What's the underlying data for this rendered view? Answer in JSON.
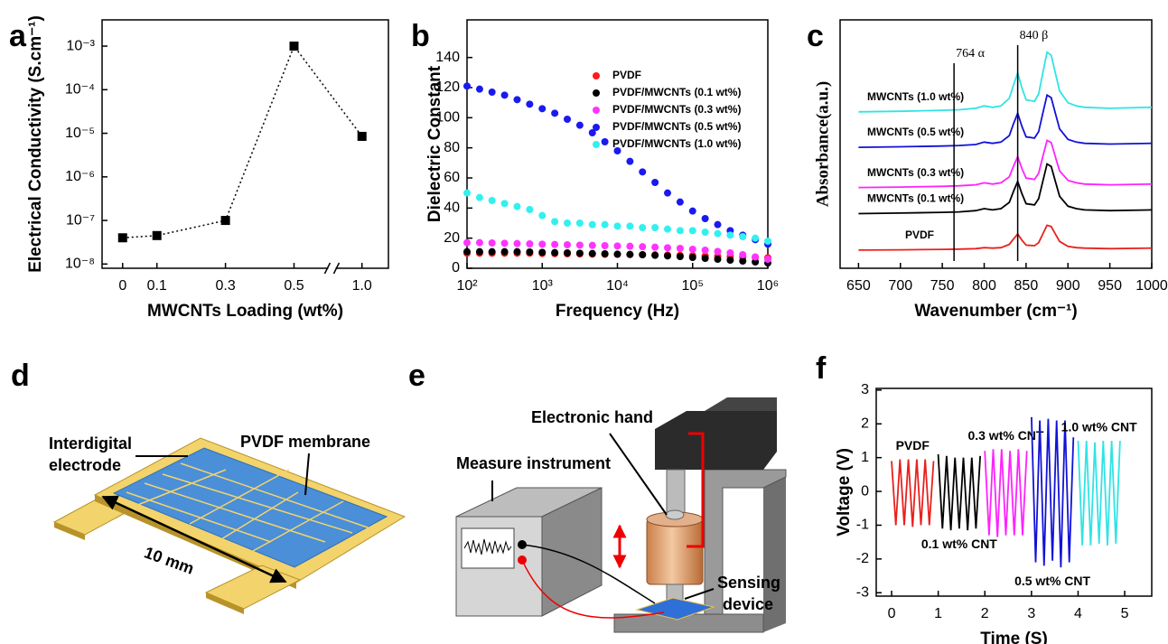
{
  "chart_data": [
    {
      "panel": "a",
      "type": "line",
      "marker": "square",
      "line_style": "dotted",
      "color": "#000000",
      "x": [
        0,
        0.1,
        0.3,
        0.5,
        1
      ],
      "values": [
        4e-08,
        4.5e-08,
        1e-07,
        0.001,
        8.5e-06
      ],
      "xlim": [
        -0.06,
        1.1
      ],
      "axis_break": [
        0.6,
        0.9
      ],
      "xticks": [
        0,
        0.1,
        0.3,
        0.5,
        {
          "value": 1,
          "label": "1.0"
        }
      ],
      "ylim": [
        8e-09,
        0.004
      ],
      "ylog": true,
      "yticks": [
        {
          "value": 1e-08,
          "label": "10⁻⁸"
        },
        {
          "value": 1e-07,
          "label": "10⁻⁷"
        },
        {
          "value": 1e-06,
          "label": "10⁻⁶"
        },
        {
          "value": 1e-05,
          "label": "10⁻⁵"
        },
        {
          "value": 0.0001,
          "label": "10⁻⁴"
        },
        {
          "value": 0.001,
          "label": "10⁻³"
        }
      ],
      "xlabel": "MWCNTs Loading  (wt%)",
      "ylabel": "Electrical Conductivity (S.cm⁻¹)"
    },
    {
      "panel": "b",
      "type": "scatter",
      "xlog": true,
      "legend": "upper right",
      "x": [
        100,
        147,
        215,
        316,
        464,
        681,
        1000,
        1468,
        2154,
        3162,
        4642,
        6813,
        10000,
        14678,
        21544,
        31623,
        46416,
        68129,
        100000,
        146780,
        215440,
        316230,
        464160,
        681290,
        1000000
      ],
      "series": [
        {
          "name": "PVDF",
          "color": "#ff1a1a",
          "values": [
            10,
            10,
            10,
            10,
            10,
            10,
            9.8,
            9.7,
            9.6,
            9.5,
            9.4,
            9.3,
            9.2,
            9.1,
            9,
            8.9,
            8.8,
            8.6,
            8.4,
            8.2,
            8,
            7.8,
            7.5,
            7.2,
            7
          ]
        },
        {
          "name": "PVDF/MWCNTs (0.1 wt%)",
          "color": "#000000",
          "values": [
            11,
            11,
            11,
            11,
            11,
            10.8,
            10.6,
            10.4,
            10.2,
            10,
            9.8,
            9.6,
            9.4,
            9.2,
            9,
            8.6,
            8.2,
            7.8,
            7.2,
            6.6,
            6,
            5.4,
            4.8,
            4.2,
            3.5
          ]
        },
        {
          "name": "PVDF/MWCNTs (0.3 wt%)",
          "color": "#ff33ff",
          "values": [
            17,
            17,
            16.8,
            16.6,
            16.4,
            16.2,
            16,
            15.8,
            15.6,
            15.4,
            15.2,
            15,
            14.8,
            14.6,
            14.3,
            14,
            13.6,
            13.2,
            12.6,
            12,
            11.2,
            10.2,
            9,
            7.5,
            6
          ]
        },
        {
          "name": "PVDF/MWCNTs (0.5 wt%)",
          "color": "#1a1aee",
          "values": [
            121,
            119,
            117,
            115,
            112,
            109,
            106,
            103,
            99,
            95,
            90,
            84,
            78,
            71,
            64,
            57,
            50,
            44,
            38,
            33,
            29,
            25,
            22,
            19,
            16
          ]
        },
        {
          "name": "PVDF/MWCNTs (1.0 wt%)",
          "color": "#33f0f0",
          "values": [
            50,
            47,
            45,
            43,
            41,
            39,
            35,
            31,
            30,
            30,
            29,
            29,
            28,
            28,
            27,
            27,
            26,
            25,
            25,
            24,
            23,
            22,
            21,
            20,
            18
          ]
        }
      ],
      "xlim": [
        100,
        1000000
      ],
      "xticks": [
        {
          "value": 100,
          "label": "10²"
        },
        {
          "value": 1000,
          "label": "10³"
        },
        {
          "value": 10000,
          "label": "10⁴"
        },
        {
          "value": 100000,
          "label": "10⁵"
        },
        {
          "value": 1000000,
          "label": "10⁶"
        }
      ],
      "ylim": [
        0,
        165
      ],
      "yticks": [
        0,
        20,
        40,
        60,
        80,
        100,
        120,
        140
      ],
      "xlabel": "Frequency (Hz)",
      "ylabel": "Dielectric Constant"
    },
    {
      "panel": "c",
      "type": "line",
      "x": [
        650,
        700,
        750,
        770,
        790,
        800,
        810,
        820,
        830,
        835,
        840,
        845,
        850,
        860,
        865,
        870,
        875,
        880,
        885,
        890,
        900,
        910,
        920,
        950,
        1000
      ],
      "series": [
        {
          "name": "PVDF",
          "color": "#e8211d",
          "values": [
            0.73,
            0.74,
            0.76,
            0.77,
            0.79,
            0.83,
            0.81,
            0.83,
            0.96,
            1.18,
            1.38,
            1.13,
            0.93,
            0.91,
            1.03,
            1.38,
            1.73,
            1.68,
            1.38,
            1.08,
            0.88,
            0.83,
            0.81,
            0.79,
            0.81
          ]
        },
        {
          "name": "MWCNTs (0.1 wt%)",
          "color": "#000000",
          "values": [
            2.2,
            2.22,
            2.25,
            2.27,
            2.32,
            2.4,
            2.35,
            2.4,
            2.65,
            3.1,
            3.5,
            3.0,
            2.6,
            2.55,
            2.8,
            3.5,
            4.2,
            4.1,
            3.5,
            2.9,
            2.5,
            2.4,
            2.35,
            2.32,
            2.35
          ]
        },
        {
          "name": "MWCNTs (0.3 wt%)",
          "color": "#ff22ff",
          "values": [
            3.25,
            3.27,
            3.3,
            3.32,
            3.36,
            3.44,
            3.39,
            3.44,
            3.68,
            4.11,
            4.49,
            4.01,
            3.63,
            3.58,
            3.82,
            4.49,
            5.15,
            5.06,
            4.49,
            3.92,
            3.54,
            3.44,
            3.39,
            3.36,
            3.39
          ]
        },
        {
          "name": "MWCNTs (0.5 wt%)",
          "color": "#1212d8",
          "values": [
            4.87,
            4.89,
            4.92,
            4.94,
            4.98,
            5.08,
            5.03,
            5.08,
            5.34,
            5.82,
            6.24,
            5.71,
            5.29,
            5.24,
            5.5,
            6.24,
            6.97,
            6.87,
            6.24,
            5.61,
            5.19,
            5.08,
            5.03,
            5.0,
            5.03
          ]
        },
        {
          "name": "MWCNTs (1.0 wt%)",
          "color": "#2fe4e4",
          "values": [
            6.3,
            6.32,
            6.36,
            6.38,
            6.44,
            6.54,
            6.48,
            6.54,
            6.84,
            7.38,
            7.86,
            7.26,
            6.78,
            6.72,
            7.02,
            7.86,
            8.7,
            8.58,
            7.86,
            7.14,
            6.66,
            6.54,
            6.48,
            6.44,
            6.48
          ]
        }
      ],
      "annotations": [
        {
          "text": "764 α",
          "x": 764
        },
        {
          "text": "840 β",
          "x": 840
        }
      ],
      "xlim": [
        628,
        1000
      ],
      "xticks": [
        650,
        700,
        750,
        800,
        850,
        900,
        950,
        1000
      ],
      "ylim": [
        0,
        10
      ],
      "xlabel": "Wavenumber (cm⁻¹)",
      "ylabel": "Absorbance(a.u.)"
    },
    {
      "panel": "f",
      "type": "line",
      "series": [
        {
          "name": "PVDF",
          "color": "#e8211d",
          "x": [
            0,
            0.09,
            0.18,
            0.27,
            0.36,
            0.45,
            0.54,
            0.63,
            0.72,
            0.81,
            0.9
          ],
          "values": [
            0.9,
            -1,
            0.95,
            -1,
            0.95,
            -1.05,
            0.95,
            -1,
            0.95,
            -1,
            0.9
          ]
        },
        {
          "name": "0.1 wt% CNT",
          "color": "#000000",
          "x": [
            1.0,
            1.09,
            1.18,
            1.27,
            1.36,
            1.45,
            1.54,
            1.63,
            1.72,
            1.81,
            1.9
          ],
          "values": [
            1.1,
            -1.1,
            1.05,
            -1.15,
            1.0,
            -1.1,
            1.0,
            -1.15,
            1.0,
            -1.1,
            1.05
          ]
        },
        {
          "name": "0.3 wt% CNT",
          "color": "#ff22ff",
          "x": [
            2.0,
            2.09,
            2.18,
            2.27,
            2.36,
            2.45,
            2.54,
            2.63,
            2.72,
            2.81,
            2.9
          ],
          "values": [
            1.2,
            -1.3,
            1.25,
            -1.35,
            1.25,
            -1.3,
            1.2,
            -1.3,
            1.25,
            -1.3,
            1.2
          ]
        },
        {
          "name": "0.5 wt% CNT",
          "color": "#1212d8",
          "x": [
            3.0,
            3.09,
            3.18,
            3.27,
            3.36,
            3.45,
            3.54,
            3.63,
            3.72,
            3.81,
            3.9
          ],
          "values": [
            2.2,
            -2.1,
            2.1,
            -2.2,
            2.15,
            -2.05,
            2.1,
            -2.25,
            2.1,
            -2.1,
            1.6
          ]
        },
        {
          "name": "1.0 wt% CNT",
          "color": "#2fe4e4",
          "x": [
            4.0,
            4.09,
            4.18,
            4.27,
            4.36,
            4.45,
            4.54,
            4.63,
            4.72,
            4.81,
            4.9
          ],
          "values": [
            1.5,
            -1.6,
            1.5,
            -1.6,
            1.45,
            -1.55,
            1.5,
            -1.6,
            1.5,
            -1.55,
            1.5
          ]
        }
      ],
      "xlim": [
        -0.33,
        5.58
      ],
      "xticks": [
        0,
        1,
        2,
        3,
        4,
        5
      ],
      "ylim": [
        -3.1,
        3.05
      ],
      "yticks": [
        -3,
        -2,
        -1,
        0,
        1,
        2,
        3
      ],
      "xlabel": "Time (S)",
      "ylabel": "Voltage (V)"
    }
  ],
  "diagrams": [
    {
      "panel": "d",
      "texts": [
        "Interdigital",
        "electrode",
        "PVDF membrane",
        "10 mm"
      ]
    },
    {
      "panel": "e",
      "texts": [
        "Electronic hand",
        "Measure instrument",
        "Sensing",
        "device"
      ]
    }
  ]
}
